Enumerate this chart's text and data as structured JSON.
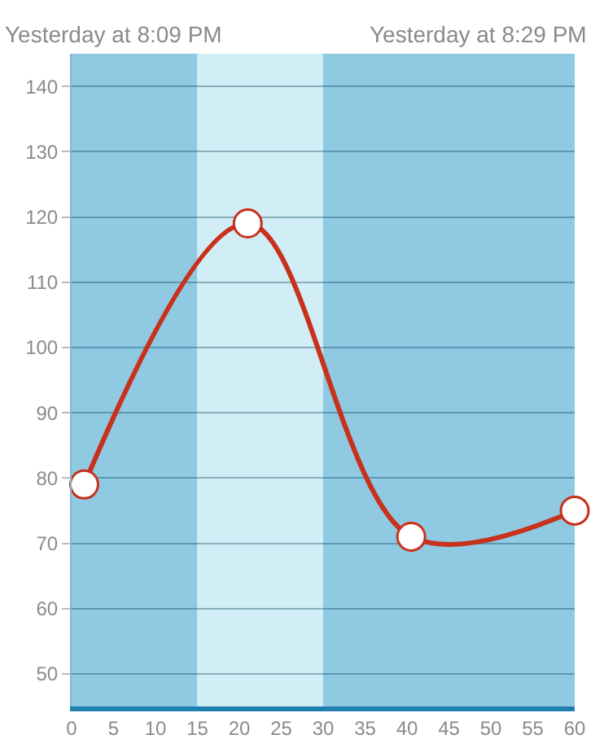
{
  "chart_data": {
    "type": "line",
    "annotations": [
      "Yesterday at 8:09 PM",
      "Yesterday at 8:29 PM"
    ],
    "x": [
      1.5,
      21,
      40.5,
      60
    ],
    "series": [
      {
        "color": "#c8311c",
        "values": [
          79,
          119,
          71,
          75
        ]
      }
    ],
    "xlim": [
      0,
      60
    ],
    "xticks": [
      0,
      5,
      10,
      15,
      20,
      25,
      30,
      35,
      40,
      45,
      50,
      55,
      60
    ],
    "ylim": [
      45,
      145
    ],
    "yticks": [
      50,
      60,
      70,
      80,
      90,
      100,
      110,
      120,
      130,
      140
    ],
    "bands": [
      {
        "axis": "x",
        "from": 0,
        "to": 15,
        "color": "#8fc9e2"
      },
      {
        "axis": "x",
        "from": 15,
        "to": 30,
        "color": "#d1edf5"
      },
      {
        "axis": "x",
        "from": 30,
        "to": 60,
        "color": "#8fc9e2"
      }
    ],
    "grid": "y",
    "marker": "circle",
    "line_style": "solid",
    "legend": false
  }
}
